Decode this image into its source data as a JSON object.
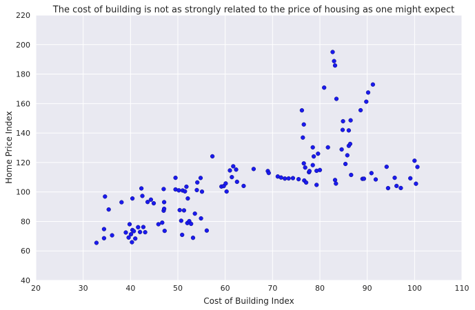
{
  "chart_data": {
    "type": "scatter",
    "title": "The cost of building is not as strongly related to the price of housing as one might expect",
    "xlabel": "Cost of Building Index",
    "ylabel": "Home Price Index",
    "xlim": [
      20,
      110
    ],
    "ylim": [
      40,
      220
    ],
    "xticks": [
      "20",
      "30",
      "40",
      "50",
      "60",
      "70",
      "80",
      "90",
      "100",
      "110"
    ],
    "yticks": [
      "40",
      "60",
      "80",
      "100",
      "120",
      "140",
      "160",
      "180",
      "200",
      "220"
    ],
    "grid": true,
    "background_color": "#e9e9f1",
    "grid_color": "#ffffff",
    "point_color": "#1a1aee",
    "point_edge_color": "#0b0b7a",
    "points": [
      [
        32.8,
        65.5
      ],
      [
        34.4,
        68.6
      ],
      [
        34.4,
        74.8
      ],
      [
        34.6,
        96.9
      ],
      [
        35.4,
        88.1
      ],
      [
        36.1,
        70.6
      ],
      [
        38.1,
        93.0
      ],
      [
        39.0,
        72.5
      ],
      [
        39.6,
        69.1
      ],
      [
        39.8,
        78.1
      ],
      [
        40.1,
        71.3
      ],
      [
        40.3,
        65.9
      ],
      [
        40.4,
        74.2
      ],
      [
        40.4,
        95.6
      ],
      [
        40.7,
        73.4
      ],
      [
        41.0,
        68.4
      ],
      [
        41.6,
        76.1
      ],
      [
        42.0,
        72.8
      ],
      [
        42.3,
        102.4
      ],
      [
        42.5,
        97.3
      ],
      [
        42.7,
        76.2
      ],
      [
        43.1,
        72.7
      ],
      [
        43.6,
        93.2
      ],
      [
        44.3,
        94.8
      ],
      [
        44.9,
        92.3
      ],
      [
        45.9,
        78.1
      ],
      [
        46.7,
        79.2
      ],
      [
        47.0,
        87.3
      ],
      [
        47.0,
        102.0
      ],
      [
        47.1,
        88.6
      ],
      [
        47.1,
        93.1
      ],
      [
        47.2,
        73.6
      ],
      [
        49.5,
        109.6
      ],
      [
        49.5,
        101.7
      ],
      [
        50.2,
        101.1
      ],
      [
        50.4,
        87.7
      ],
      [
        50.7,
        80.5
      ],
      [
        50.9,
        70.9
      ],
      [
        51.0,
        101.0
      ],
      [
        51.3,
        87.5
      ],
      [
        51.5,
        100.4
      ],
      [
        51.8,
        103.6
      ],
      [
        52.0,
        78.9
      ],
      [
        52.1,
        95.6
      ],
      [
        52.4,
        80.2
      ],
      [
        52.8,
        78.4
      ],
      [
        53.2,
        68.9
      ],
      [
        53.6,
        85.3
      ],
      [
        54.0,
        101.3
      ],
      [
        54.1,
        106.5
      ],
      [
        54.8,
        109.5
      ],
      [
        54.9,
        82.1
      ],
      [
        55.1,
        100.2
      ],
      [
        56.1,
        73.8
      ],
      [
        57.3,
        124.2
      ],
      [
        59.2,
        103.7
      ],
      [
        59.7,
        104.0
      ],
      [
        60.1,
        105.8
      ],
      [
        60.3,
        100.3
      ],
      [
        61.0,
        114.6
      ],
      [
        61.4,
        110.1
      ],
      [
        61.7,
        117.4
      ],
      [
        62.3,
        115.2
      ],
      [
        62.5,
        106.9
      ],
      [
        63.9,
        104.1
      ],
      [
        66.0,
        115.6
      ],
      [
        69.0,
        114.2
      ],
      [
        69.2,
        112.9
      ],
      [
        71.1,
        110.5
      ],
      [
        71.8,
        109.8
      ],
      [
        72.6,
        109.1
      ],
      [
        73.4,
        109.2
      ],
      [
        74.3,
        109.4
      ],
      [
        75.5,
        108.7
      ],
      [
        76.2,
        155.4
      ],
      [
        76.4,
        136.9
      ],
      [
        76.6,
        145.8
      ],
      [
        76.6,
        119.4
      ],
      [
        76.7,
        107.8
      ],
      [
        76.9,
        116.6
      ],
      [
        77.1,
        106.4
      ],
      [
        77.7,
        113.4
      ],
      [
        77.8,
        114.2
      ],
      [
        78.5,
        130.3
      ],
      [
        78.5,
        118.2
      ],
      [
        78.7,
        124.1
      ],
      [
        79.3,
        114.4
      ],
      [
        79.3,
        104.8
      ],
      [
        79.6,
        126.0
      ],
      [
        80.0,
        114.9
      ],
      [
        80.9,
        170.8
      ],
      [
        81.7,
        130.3
      ],
      [
        82.7,
        195.0
      ],
      [
        83.0,
        188.8
      ],
      [
        83.2,
        108.1
      ],
      [
        83.2,
        185.8
      ],
      [
        83.4,
        105.7
      ],
      [
        83.5,
        163.2
      ],
      [
        84.6,
        128.9
      ],
      [
        84.8,
        142.1
      ],
      [
        84.9,
        148.0
      ],
      [
        85.4,
        119.0
      ],
      [
        85.8,
        124.9
      ],
      [
        86.1,
        131.3
      ],
      [
        86.1,
        141.8
      ],
      [
        86.4,
        132.6
      ],
      [
        86.5,
        148.6
      ],
      [
        86.6,
        111.6
      ],
      [
        88.6,
        155.5
      ],
      [
        89.0,
        108.9
      ],
      [
        89.3,
        109.0
      ],
      [
        89.8,
        161.3
      ],
      [
        90.2,
        167.5
      ],
      [
        90.9,
        112.8
      ],
      [
        91.2,
        172.9
      ],
      [
        91.8,
        108.5
      ],
      [
        94.1,
        117.1
      ],
      [
        94.4,
        102.6
      ],
      [
        95.8,
        109.6
      ],
      [
        96.2,
        104.1
      ],
      [
        97.1,
        102.7
      ],
      [
        99.1,
        109.3
      ],
      [
        100.0,
        121.2
      ],
      [
        100.3,
        105.6
      ],
      [
        100.6,
        117.0
      ]
    ]
  }
}
